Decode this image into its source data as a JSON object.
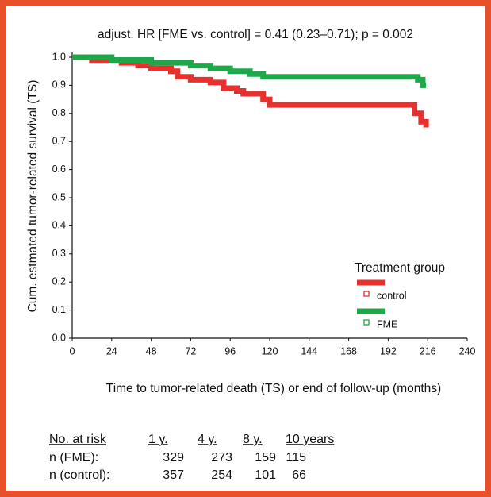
{
  "chart_data": {
    "type": "line",
    "step": true,
    "title": "adjust. HR [FME vs. control] = 0.41 (0.23–0.71); p = 0.002",
    "x_label": "Time to tumor-related death (TS) or end of follow-up (months)",
    "y_label": "Cum. estmated tumor-related survival (TS)",
    "legend_title": "Treatment group",
    "legend": "lower right",
    "xlim": [
      0,
      240
    ],
    "xticks": [
      0,
      24,
      48,
      72,
      96,
      120,
      144,
      168,
      192,
      216,
      240
    ],
    "ylim": [
      0,
      1
    ],
    "yticks": [
      {
        "value": 0,
        "label": "0.0"
      },
      0.1,
      0.2,
      0.3,
      0.4,
      0.5,
      0.6,
      0.7,
      0.8,
      0.9,
      {
        "value": 1,
        "label": "1.0"
      }
    ],
    "series": [
      {
        "name": "control",
        "color": "#e8302e",
        "x": [
          0,
          12,
          12,
          30,
          30,
          40,
          40,
          48,
          48,
          60,
          60,
          64,
          64,
          72,
          72,
          84,
          84,
          92,
          92,
          100,
          100,
          104,
          104,
          116,
          116,
          120,
          120,
          208,
          208,
          212,
          212,
          215,
          215
        ],
        "values": [
          1,
          1,
          0.99,
          0.99,
          0.98,
          0.98,
          0.97,
          0.97,
          0.96,
          0.96,
          0.95,
          0.95,
          0.93,
          0.93,
          0.92,
          0.92,
          0.91,
          0.91,
          0.89,
          0.89,
          0.88,
          0.88,
          0.87,
          0.87,
          0.85,
          0.85,
          0.83,
          0.83,
          0.8,
          0.8,
          0.77,
          0.77,
          0.75
        ]
      },
      {
        "name": "FME",
        "color": "#1fa84a",
        "x": [
          0,
          24,
          24,
          48,
          48,
          72,
          72,
          84,
          84,
          96,
          96,
          108,
          108,
          116,
          116,
          210,
          210,
          213,
          213,
          215
        ],
        "values": [
          1,
          1,
          0.99,
          0.99,
          0.98,
          0.98,
          0.97,
          0.97,
          0.96,
          0.96,
          0.95,
          0.95,
          0.94,
          0.94,
          0.93,
          0.93,
          0.92,
          0.92,
          0.9,
          0.9
        ]
      }
    ]
  },
  "risk_table": {
    "header": [
      "No. at risk",
      "1 y.",
      "4 y.",
      "8 y.",
      "10 years"
    ],
    "rows": [
      {
        "label": "n (FME):",
        "values": [
          329,
          273,
          159,
          115
        ]
      },
      {
        "label": "n (control):",
        "values": [
          357,
          254,
          101,
          66
        ]
      }
    ]
  }
}
